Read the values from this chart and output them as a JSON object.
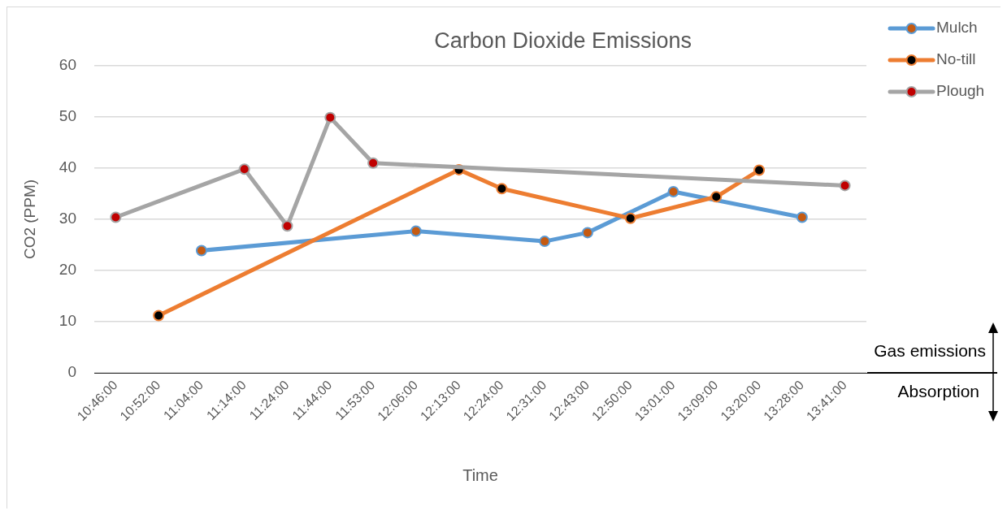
{
  "chart_data": {
    "type": "line",
    "title": "Carbon Dioxide Emissions",
    "xlabel": "Time",
    "ylabel": "CO2 (PPM)",
    "categories": [
      "10:46:00",
      "10:52:00",
      "11:04:00",
      "11:14:00",
      "11:24:00",
      "11:44:00",
      "11:53:00",
      "12:06:00",
      "12:13:00",
      "12:24:00",
      "12:31:00",
      "12:43:00",
      "12:50:00",
      "13:01:00",
      "13:09:00",
      "13:20:00",
      "13:28:00",
      "13:41:00"
    ],
    "series": [
      {
        "name": "Mulch",
        "color": "#5b9bd5",
        "colors": [
          "#c55a11",
          "#c55a11",
          "#c55a11",
          "#c55a11",
          "#c55a11",
          "#c55a11",
          "#c55a11",
          "#c55a11",
          "#c55a11",
          "#c55a11",
          "#c55a11",
          "#c55a11",
          "#c55a11",
          "#c55a11",
          "#c55a11",
          "#c55a11",
          "#c55a11",
          "#c55a11"
        ],
        "values": [
          null,
          null,
          23.9,
          null,
          null,
          null,
          null,
          27.7,
          null,
          null,
          25.7,
          27.4,
          null,
          35.4,
          null,
          null,
          30.4,
          null
        ]
      },
      {
        "name": "No-till",
        "color": "#ed7d31",
        "colors": [
          "#000000",
          "#000000",
          "#000000",
          "#000000",
          "#000000",
          "#000000",
          "#000000",
          "#000000",
          "#000000",
          "#000000",
          "#000000",
          "#000000",
          "#000000",
          "#000000",
          "#000000",
          "#000000",
          "#000000",
          "#000000"
        ],
        "values": [
          null,
          11.2,
          null,
          null,
          null,
          null,
          null,
          null,
          39.7,
          36.0,
          null,
          null,
          30.2,
          null,
          34.4,
          39.6,
          null,
          null
        ]
      },
      {
        "name": "Plough",
        "color": "#a5a5a5",
        "colors": [
          "#c00000",
          "#c00000",
          "#c00000",
          "#c00000",
          "#c00000",
          "#c00000",
          "#c00000",
          "#c00000",
          "#c00000",
          "#c00000",
          "#c00000",
          "#c00000",
          "#c00000",
          "#c00000",
          "#c00000",
          "#c00000",
          "#c00000",
          "#c00000"
        ],
        "values": [
          30.4,
          null,
          null,
          39.8,
          28.7,
          49.9,
          41.0,
          null,
          null,
          null,
          null,
          null,
          null,
          null,
          null,
          null,
          null,
          36.6
        ]
      }
    ],
    "ylim": [
      0,
      60
    ],
    "yticks": [
      0,
      10,
      20,
      30,
      40,
      50,
      60
    ],
    "grid": "y",
    "legend": "top right",
    "marker": "circle",
    "line_style": "solid",
    "annotations": [
      "Gas emissions",
      "Absorption"
    ]
  }
}
